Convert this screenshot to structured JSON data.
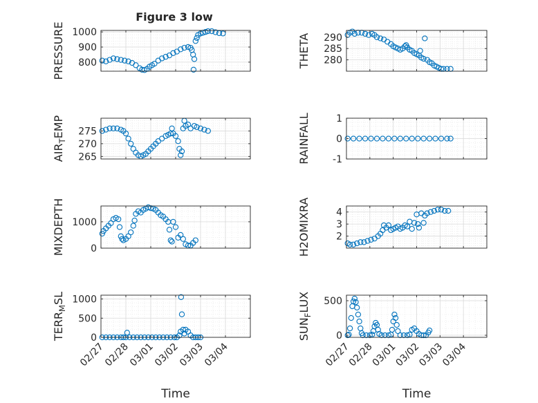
{
  "figure": {
    "title": "Figure 3 low",
    "marker_color": "#0072BD",
    "axis_color": "#262626",
    "grid_color": "#d9d9d9"
  },
  "chart_data": [
    {
      "type": "scatter",
      "ylabel": "PRESSURE",
      "ylim": [
        740,
        1010
      ],
      "yticks": [
        800,
        900,
        1000
      ],
      "xlim": [
        0,
        6
      ],
      "xticks": [
        0,
        1,
        2,
        3,
        4,
        5,
        6
      ],
      "xticklabels": [],
      "xlabel": "",
      "grid": true,
      "points": [
        [
          0.05,
          810
        ],
        [
          0.2,
          805
        ],
        [
          0.35,
          815
        ],
        [
          0.5,
          825
        ],
        [
          0.65,
          820
        ],
        [
          0.8,
          815
        ],
        [
          0.95,
          810
        ],
        [
          1.1,
          805
        ],
        [
          1.25,
          795
        ],
        [
          1.4,
          780
        ],
        [
          1.55,
          760
        ],
        [
          1.65,
          750
        ],
        [
          1.75,
          748
        ],
        [
          1.85,
          755
        ],
        [
          1.95,
          770
        ],
        [
          2.05,
          780
        ],
        [
          2.15,
          790
        ],
        [
          2.3,
          810
        ],
        [
          2.45,
          825
        ],
        [
          2.6,
          835
        ],
        [
          2.75,
          845
        ],
        [
          2.9,
          860
        ],
        [
          3.05,
          870
        ],
        [
          3.2,
          885
        ],
        [
          3.35,
          895
        ],
        [
          3.5,
          900
        ],
        [
          3.6,
          895
        ],
        [
          3.65,
          880
        ],
        [
          3.7,
          850
        ],
        [
          3.72,
          750
        ],
        [
          3.75,
          820
        ],
        [
          3.8,
          940
        ],
        [
          3.85,
          960
        ],
        [
          3.9,
          980
        ],
        [
          4.0,
          990
        ],
        [
          4.1,
          995
        ],
        [
          4.2,
          1000
        ],
        [
          4.3,
          1005
        ],
        [
          4.45,
          1005
        ],
        [
          4.6,
          998
        ],
        [
          4.75,
          992
        ],
        [
          4.9,
          990
        ]
      ]
    },
    {
      "type": "scatter",
      "ylabel": "THETA",
      "ylim": [
        275,
        293
      ],
      "yticks": [
        280,
        285,
        290
      ],
      "xlim": [
        0,
        6
      ],
      "xticks": [
        0,
        1,
        2,
        3,
        4,
        5,
        6
      ],
      "xticklabels": [],
      "xlabel": "",
      "grid": true,
      "points": [
        [
          0.05,
          291
        ],
        [
          0.15,
          292
        ],
        [
          0.25,
          292.5
        ],
        [
          0.35,
          291.5
        ],
        [
          0.5,
          292
        ],
        [
          0.65,
          292
        ],
        [
          0.8,
          291.5
        ],
        [
          0.95,
          291
        ],
        [
          1.1,
          291.5
        ],
        [
          1.2,
          291
        ],
        [
          1.3,
          290
        ],
        [
          1.45,
          289.5
        ],
        [
          1.6,
          289
        ],
        [
          1.75,
          288
        ],
        [
          1.9,
          287
        ],
        [
          2.0,
          286
        ],
        [
          2.1,
          285.5
        ],
        [
          2.2,
          285
        ],
        [
          2.3,
          284.5
        ],
        [
          2.4,
          285
        ],
        [
          2.5,
          286
        ],
        [
          2.55,
          286.5
        ],
        [
          2.6,
          285.5
        ],
        [
          2.7,
          284.5
        ],
        [
          2.8,
          284
        ],
        [
          2.9,
          283
        ],
        [
          3.0,
          282.5
        ],
        [
          3.1,
          282
        ],
        [
          3.15,
          284
        ],
        [
          3.2,
          281
        ],
        [
          3.3,
          280.5
        ],
        [
          3.35,
          289.5
        ],
        [
          3.45,
          280
        ],
        [
          3.55,
          279
        ],
        [
          3.65,
          278.5
        ],
        [
          3.75,
          277.5
        ],
        [
          3.85,
          277
        ],
        [
          3.95,
          276.5
        ],
        [
          4.05,
          276
        ],
        [
          4.15,
          276
        ],
        [
          4.3,
          276
        ],
        [
          4.45,
          276
        ]
      ]
    },
    {
      "type": "scatter",
      "ylabel": "AIR_TEMP",
      "ylim": [
        264,
        280
      ],
      "yticks": [
        265,
        270,
        275
      ],
      "xlim": [
        0,
        6
      ],
      "xticks": [
        0,
        1,
        2,
        3,
        4,
        5,
        6
      ],
      "xticklabels": [],
      "xlabel": "",
      "grid": true,
      "points": [
        [
          0.05,
          275
        ],
        [
          0.2,
          275.5
        ],
        [
          0.35,
          276
        ],
        [
          0.5,
          276
        ],
        [
          0.65,
          276
        ],
        [
          0.8,
          275.5
        ],
        [
          0.9,
          275
        ],
        [
          1.0,
          274
        ],
        [
          1.1,
          272
        ],
        [
          1.2,
          270
        ],
        [
          1.3,
          268
        ],
        [
          1.4,
          266.5
        ],
        [
          1.5,
          265.5
        ],
        [
          1.6,
          265
        ],
        [
          1.7,
          265.5
        ],
        [
          1.8,
          266
        ],
        [
          1.9,
          267
        ],
        [
          2.0,
          268
        ],
        [
          2.1,
          269
        ],
        [
          2.2,
          270
        ],
        [
          2.3,
          271
        ],
        [
          2.45,
          272
        ],
        [
          2.6,
          273
        ],
        [
          2.7,
          273.5
        ],
        [
          2.8,
          274
        ],
        [
          2.85,
          276
        ],
        [
          2.9,
          274
        ],
        [
          3.0,
          273
        ],
        [
          3.1,
          271
        ],
        [
          3.15,
          268
        ],
        [
          3.2,
          265.5
        ],
        [
          3.25,
          267
        ],
        [
          3.3,
          276
        ],
        [
          3.35,
          279
        ],
        [
          3.4,
          277
        ],
        [
          3.5,
          277.5
        ],
        [
          3.6,
          276
        ],
        [
          3.75,
          277
        ],
        [
          3.85,
          276.5
        ],
        [
          4.0,
          276
        ],
        [
          4.15,
          275.5
        ],
        [
          4.3,
          275
        ]
      ]
    },
    {
      "type": "scatter",
      "ylabel": "RAINFALL",
      "ylim": [
        -1,
        1
      ],
      "yticks": [
        -1,
        0,
        1
      ],
      "xlim": [
        0,
        6
      ],
      "xticks": [
        0,
        1,
        2,
        3,
        4,
        5,
        6
      ],
      "xticklabels": [],
      "xlabel": "",
      "grid": true,
      "points": [
        [
          0.05,
          0
        ],
        [
          0.3,
          0
        ],
        [
          0.55,
          0
        ],
        [
          0.8,
          0
        ],
        [
          1.05,
          0
        ],
        [
          1.3,
          0
        ],
        [
          1.55,
          0
        ],
        [
          1.8,
          0
        ],
        [
          2.05,
          0
        ],
        [
          2.3,
          0
        ],
        [
          2.55,
          0
        ],
        [
          2.8,
          0
        ],
        [
          3.05,
          0
        ],
        [
          3.3,
          0
        ],
        [
          3.55,
          0
        ],
        [
          3.8,
          0
        ],
        [
          4.05,
          0
        ],
        [
          4.3,
          0
        ],
        [
          4.45,
          0
        ]
      ]
    },
    {
      "type": "scatter",
      "ylabel": "MIXDEPTH",
      "ylim": [
        0,
        1600
      ],
      "yticks": [
        0,
        1000
      ],
      "xlim": [
        0,
        6
      ],
      "xticks": [
        0,
        1,
        2,
        3,
        4,
        5,
        6
      ],
      "xticklabels": [],
      "xlabel": "",
      "grid": true,
      "points": [
        [
          0.05,
          550
        ],
        [
          0.1,
          650
        ],
        [
          0.2,
          750
        ],
        [
          0.3,
          850
        ],
        [
          0.4,
          950
        ],
        [
          0.5,
          1100
        ],
        [
          0.6,
          1150
        ],
        [
          0.7,
          1100
        ],
        [
          0.75,
          800
        ],
        [
          0.8,
          450
        ],
        [
          0.85,
          350
        ],
        [
          0.9,
          300
        ],
        [
          1.0,
          350
        ],
        [
          1.1,
          450
        ],
        [
          1.2,
          600
        ],
        [
          1.3,
          850
        ],
        [
          1.35,
          1050
        ],
        [
          1.4,
          1300
        ],
        [
          1.5,
          1400
        ],
        [
          1.6,
          1350
        ],
        [
          1.7,
          1450
        ],
        [
          1.8,
          1500
        ],
        [
          1.9,
          1550
        ],
        [
          2.0,
          1520
        ],
        [
          2.1,
          1500
        ],
        [
          2.2,
          1450
        ],
        [
          2.3,
          1350
        ],
        [
          2.4,
          1250
        ],
        [
          2.5,
          1200
        ],
        [
          2.6,
          1100
        ],
        [
          2.7,
          1000
        ],
        [
          2.75,
          700
        ],
        [
          2.8,
          300
        ],
        [
          2.85,
          250
        ],
        [
          2.9,
          1000
        ],
        [
          3.0,
          800
        ],
        [
          3.1,
          400
        ],
        [
          3.2,
          500
        ],
        [
          3.3,
          350
        ],
        [
          3.4,
          150
        ],
        [
          3.5,
          100
        ],
        [
          3.6,
          100
        ],
        [
          3.7,
          200
        ],
        [
          3.8,
          300
        ]
      ]
    },
    {
      "type": "scatter",
      "ylabel": "H2OMIXRA",
      "ylim": [
        1,
        4.5
      ],
      "yticks": [
        2,
        3,
        4
      ],
      "xlim": [
        0,
        6
      ],
      "xticks": [
        0,
        1,
        2,
        3,
        4,
        5,
        6
      ],
      "xticklabels": [],
      "xlabel": "",
      "grid": true,
      "points": [
        [
          0.05,
          1.4
        ],
        [
          0.15,
          1.3
        ],
        [
          0.3,
          1.3
        ],
        [
          0.45,
          1.4
        ],
        [
          0.6,
          1.5
        ],
        [
          0.75,
          1.5
        ],
        [
          0.9,
          1.6
        ],
        [
          1.05,
          1.7
        ],
        [
          1.2,
          1.8
        ],
        [
          1.35,
          2.0
        ],
        [
          1.45,
          2.2
        ],
        [
          1.55,
          2.5
        ],
        [
          1.6,
          2.9
        ],
        [
          1.7,
          2.7
        ],
        [
          1.8,
          2.9
        ],
        [
          1.9,
          2.5
        ],
        [
          2.0,
          2.6
        ],
        [
          2.1,
          2.7
        ],
        [
          2.2,
          2.8
        ],
        [
          2.3,
          2.6
        ],
        [
          2.4,
          2.7
        ],
        [
          2.5,
          2.9
        ],
        [
          2.6,
          2.8
        ],
        [
          2.7,
          3.2
        ],
        [
          2.8,
          2.6
        ],
        [
          2.9,
          3.1
        ],
        [
          3.0,
          3.8
        ],
        [
          3.05,
          3.0
        ],
        [
          3.1,
          2.7
        ],
        [
          3.2,
          3.9
        ],
        [
          3.3,
          3.1
        ],
        [
          3.35,
          3.7
        ],
        [
          3.45,
          3.9
        ],
        [
          3.6,
          4.0
        ],
        [
          3.75,
          4.1
        ],
        [
          3.9,
          4.2
        ],
        [
          4.05,
          4.2
        ],
        [
          4.2,
          4.1
        ],
        [
          4.35,
          4.1
        ]
      ]
    },
    {
      "type": "scatter",
      "ylabel": "TERR_MSL",
      "ylim": [
        0,
        1100
      ],
      "yticks": [
        0,
        500,
        1000
      ],
      "xlim": [
        0,
        6
      ],
      "xticks": [
        0,
        1,
        2,
        3,
        4,
        5,
        6
      ],
      "xticklabels": [
        "02/27",
        "02/28",
        "03/01",
        "03/02",
        "03/03",
        "03/04",
        ""
      ],
      "xlabel": "Time",
      "grid": true,
      "points": [
        [
          0.05,
          0
        ],
        [
          0.2,
          0
        ],
        [
          0.35,
          0
        ],
        [
          0.5,
          0
        ],
        [
          0.65,
          0
        ],
        [
          0.8,
          0
        ],
        [
          0.9,
          0
        ],
        [
          1.0,
          0
        ],
        [
          1.05,
          120
        ],
        [
          1.15,
          0
        ],
        [
          1.3,
          0
        ],
        [
          1.45,
          0
        ],
        [
          1.6,
          0
        ],
        [
          1.75,
          0
        ],
        [
          1.9,
          0
        ],
        [
          2.05,
          0
        ],
        [
          2.2,
          0
        ],
        [
          2.35,
          0
        ],
        [
          2.5,
          0
        ],
        [
          2.65,
          0
        ],
        [
          2.8,
          0
        ],
        [
          2.95,
          0
        ],
        [
          3.05,
          0
        ],
        [
          3.15,
          50
        ],
        [
          3.2,
          150
        ],
        [
          3.22,
          1050
        ],
        [
          3.25,
          600
        ],
        [
          3.3,
          200
        ],
        [
          3.35,
          100
        ],
        [
          3.4,
          200
        ],
        [
          3.5,
          150
        ],
        [
          3.6,
          50
        ],
        [
          3.7,
          0
        ],
        [
          3.8,
          0
        ],
        [
          3.9,
          0
        ],
        [
          4.0,
          0
        ]
      ]
    },
    {
      "type": "scatter",
      "ylabel": "SUN_FLUX",
      "ylim": [
        -30,
        580
      ],
      "yticks": [
        0,
        500
      ],
      "xlim": [
        0,
        6
      ],
      "xticks": [
        0,
        1,
        2,
        3,
        4,
        5,
        6
      ],
      "xticklabels": [
        "02/27",
        "02/28",
        "03/01",
        "03/02",
        "03/03",
        "03/04",
        ""
      ],
      "xlabel": "Time",
      "grid": true,
      "points": [
        [
          0.05,
          0
        ],
        [
          0.1,
          10
        ],
        [
          0.15,
          100
        ],
        [
          0.2,
          250
        ],
        [
          0.25,
          420
        ],
        [
          0.3,
          490
        ],
        [
          0.35,
          530
        ],
        [
          0.4,
          480
        ],
        [
          0.45,
          400
        ],
        [
          0.5,
          300
        ],
        [
          0.55,
          200
        ],
        [
          0.6,
          100
        ],
        [
          0.65,
          30
        ],
        [
          0.7,
          0
        ],
        [
          0.85,
          0
        ],
        [
          1.0,
          0
        ],
        [
          1.1,
          10
        ],
        [
          1.15,
          60
        ],
        [
          1.2,
          130
        ],
        [
          1.25,
          180
        ],
        [
          1.3,
          150
        ],
        [
          1.35,
          80
        ],
        [
          1.4,
          20
        ],
        [
          1.5,
          0
        ],
        [
          1.65,
          0
        ],
        [
          1.8,
          0
        ],
        [
          1.9,
          10
        ],
        [
          1.95,
          80
        ],
        [
          2.0,
          200
        ],
        [
          2.05,
          300
        ],
        [
          2.1,
          250
        ],
        [
          2.15,
          150
        ],
        [
          2.2,
          60
        ],
        [
          2.3,
          0
        ],
        [
          2.45,
          0
        ],
        [
          2.6,
          0
        ],
        [
          2.7,
          10
        ],
        [
          2.8,
          80
        ],
        [
          2.9,
          100
        ],
        [
          3.0,
          60
        ],
        [
          3.1,
          20
        ],
        [
          3.2,
          0
        ],
        [
          3.3,
          0
        ],
        [
          3.4,
          0
        ],
        [
          3.5,
          40
        ],
        [
          3.55,
          70
        ]
      ]
    }
  ]
}
